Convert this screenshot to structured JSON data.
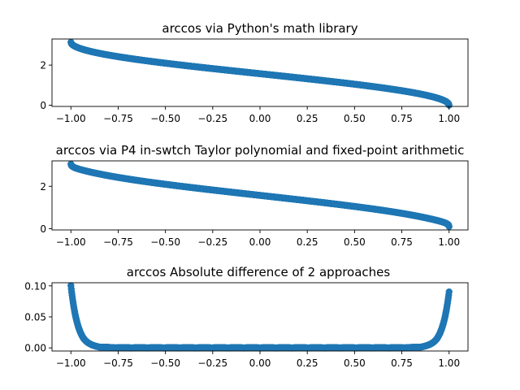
{
  "chart_data": [
    {
      "type": "scatter",
      "title": "arccos via Python's math library",
      "function": "arccos",
      "x_range": [
        -1.0,
        1.0
      ],
      "num_points": 1000,
      "xlim": [
        -1.1,
        1.1
      ],
      "ylim": [
        -0.06,
        3.3
      ],
      "xticks": [
        -1.0,
        -0.75,
        -0.5,
        -0.25,
        0.0,
        0.25,
        0.5,
        0.75,
        1.0
      ],
      "xtick_labels": [
        "−1.00",
        "−0.75",
        "−0.50",
        "−0.25",
        "0.00",
        "0.25",
        "0.50",
        "0.75",
        "1.00"
      ],
      "yticks": [
        0,
        2
      ],
      "ytick_labels": [
        "0",
        "2"
      ],
      "color": "#1f77b4"
    },
    {
      "type": "scatter",
      "title": "arccos via P4 in-swtch Taylor polynomial and fixed-point arithmetic",
      "function": "arccos_approx",
      "x_range": [
        -1.0,
        1.0
      ],
      "num_points": 1000,
      "endpoint_values": [
        3.05,
        0.1
      ],
      "xlim": [
        -1.1,
        1.1
      ],
      "ylim": [
        -0.06,
        3.2
      ],
      "xticks": [
        -1.0,
        -0.75,
        -0.5,
        -0.25,
        0.0,
        0.25,
        0.5,
        0.75,
        1.0
      ],
      "xtick_labels": [
        "−1.00",
        "−0.75",
        "−0.50",
        "−0.25",
        "0.00",
        "0.25",
        "0.50",
        "0.75",
        "1.00"
      ],
      "yticks": [
        0,
        2
      ],
      "ytick_labels": [
        "0",
        "2"
      ],
      "color": "#1f77b4"
    },
    {
      "type": "scatter",
      "title": "arccos Absolute difference of 2 approaches",
      "function": "abs_difference",
      "x_range": [
        -1.0,
        1.0
      ],
      "num_points": 1000,
      "max_left": 0.1,
      "max_right": 0.09,
      "xlim": [
        -1.1,
        1.1
      ],
      "ylim": [
        -0.005,
        0.105
      ],
      "xticks": [
        -1.0,
        -0.75,
        -0.5,
        -0.25,
        0.0,
        0.25,
        0.5,
        0.75,
        1.0
      ],
      "xtick_labels": [
        "−1.00",
        "−0.75",
        "−0.50",
        "−0.25",
        "0.00",
        "0.25",
        "0.50",
        "0.75",
        "1.00"
      ],
      "yticks": [
        0.0,
        0.05,
        0.1
      ],
      "ytick_labels": [
        "0.00",
        "0.05",
        "0.10"
      ],
      "color": "#1f77b4"
    }
  ]
}
